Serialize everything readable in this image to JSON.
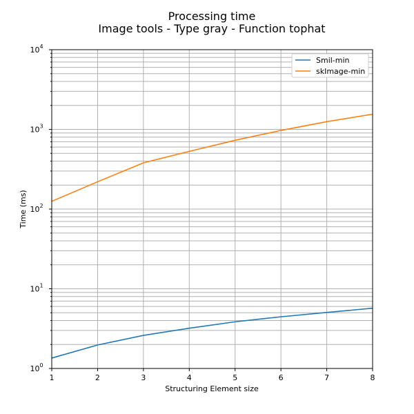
{
  "chart_data": {
    "type": "line",
    "title": "Processing time",
    "subtitle": "Image tools - Type gray - Function tophat",
    "xlabel": "Structuring Element size",
    "ylabel": "Time (ms)",
    "x": [
      1,
      2,
      3,
      4,
      5,
      6,
      7,
      8
    ],
    "xlim": [
      1,
      8
    ],
    "ylim": [
      1,
      10000
    ],
    "yscale": "log",
    "grid": true,
    "legend_position": "top-right",
    "x_ticks": [
      "1",
      "2",
      "3",
      "4",
      "5",
      "6",
      "7",
      "8"
    ],
    "y_ticks": [
      {
        "base": "10",
        "exp": "0",
        "value": 1
      },
      {
        "base": "10",
        "exp": "1",
        "value": 10
      },
      {
        "base": "10",
        "exp": "2",
        "value": 100
      },
      {
        "base": "10",
        "exp": "3",
        "value": 1000
      },
      {
        "base": "10",
        "exp": "4",
        "value": 10000
      }
    ],
    "series": [
      {
        "name": "Smil-min",
        "color": "#1f77b4",
        "values": [
          1.35,
          1.97,
          2.6,
          3.2,
          3.85,
          4.45,
          5.05,
          5.7
        ]
      },
      {
        "name": "skImage-min",
        "color": "#ff7f0e",
        "values": [
          125,
          220,
          380,
          530,
          730,
          970,
          1250,
          1550
        ]
      }
    ]
  }
}
